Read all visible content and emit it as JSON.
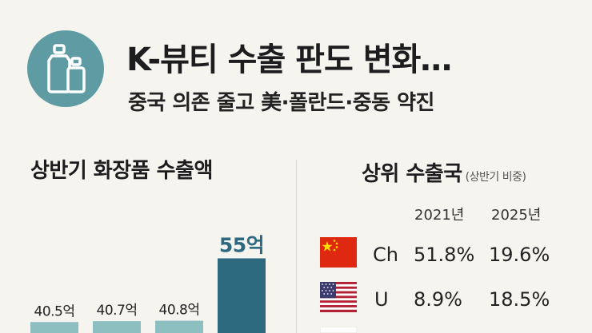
{
  "header": {
    "title": "K-뷰티 수출 판도 변화…",
    "subtitle": "중국 의존 줄고 美·폴란드·중동 약진"
  },
  "left_section": {
    "title": "상반기 화장품 수출액"
  },
  "right_section": {
    "title": "상위 수출국",
    "title_note": "(상반기 비중)"
  },
  "colors": {
    "accent": "#5e9ba3",
    "bar_light": "#8dbfc1",
    "bar_dark": "#2d6a80",
    "highlight_label": "#2d6a80"
  },
  "chart_data": [
    {
      "type": "bar",
      "title": "상반기 화장품 수출액",
      "categories": [
        "",
        "",
        "",
        ""
      ],
      "values": [
        40.5,
        40.7,
        40.8,
        55
      ],
      "labels": [
        "40.5억",
        "40.7억",
        "40.8억",
        "55억"
      ],
      "highlight_index": 3,
      "ylim": [
        38,
        62
      ],
      "grid": false
    },
    {
      "type": "table",
      "title": "상위 수출국",
      "columns": [
        "2021년",
        "2025년"
      ],
      "rows": [
        {
          "country": "Ch",
          "flag": "china-flag",
          "values": [
            "51.8%",
            "19.6%"
          ]
        },
        {
          "country": "U",
          "flag": "usa-flag",
          "values": [
            "8.9%",
            "18.5%"
          ]
        }
      ]
    }
  ]
}
